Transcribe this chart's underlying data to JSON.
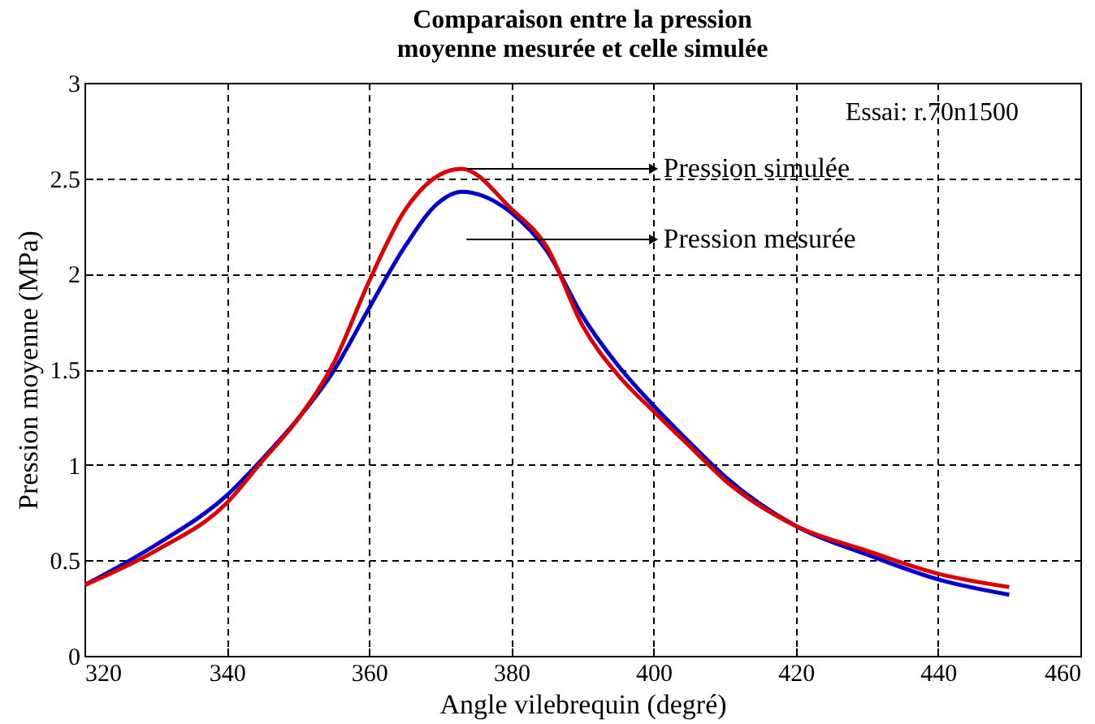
{
  "chart_data": {
    "type": "line",
    "title": "Comparaison entre la pression\nmoyenne mesurée et celle simulée",
    "xlabel": "Angle vilebrequin (degré)",
    "ylabel": "Pression moyenne (MPa)",
    "x": [
      320,
      330,
      340,
      345,
      350,
      355,
      360,
      365,
      370,
      373,
      380,
      385,
      390,
      395,
      400,
      405,
      410,
      420,
      430,
      440,
      450
    ],
    "series": [
      {
        "color": "#0000cc",
        "values": [
          0.37,
          0.58,
          0.84,
          1.03,
          1.24,
          1.49,
          1.82,
          2.14,
          2.38,
          2.43,
          2.32,
          2.12,
          1.78,
          1.52,
          1.31,
          1.12,
          0.94,
          0.68,
          0.53,
          0.4,
          0.32
        ]
      },
      {
        "color": "#dd0000",
        "values": [
          0.37,
          0.55,
          0.8,
          1.02,
          1.24,
          1.53,
          1.96,
          2.33,
          2.52,
          2.55,
          2.34,
          2.14,
          1.73,
          1.47,
          1.28,
          1.1,
          0.92,
          0.68,
          0.55,
          0.43,
          0.36
        ]
      }
    ],
    "annotations": [
      "Essai: r.70n1500",
      {
        "text": "Pression simulée",
        "x": 400,
        "y": 2.55
      },
      {
        "text": "Pression mesurée",
        "x": 400,
        "y": 2.18
      }
    ],
    "xlim": [
      320,
      460
    ],
    "xticks": [
      320,
      340,
      360,
      380,
      400,
      420,
      440,
      460
    ],
    "ylim": [
      0,
      3
    ],
    "yticks": [
      0,
      0.5,
      1,
      1.5,
      2,
      2.5,
      3
    ],
    "grid": true,
    "legend": false,
    "marker": "none",
    "line_style": "solid"
  }
}
